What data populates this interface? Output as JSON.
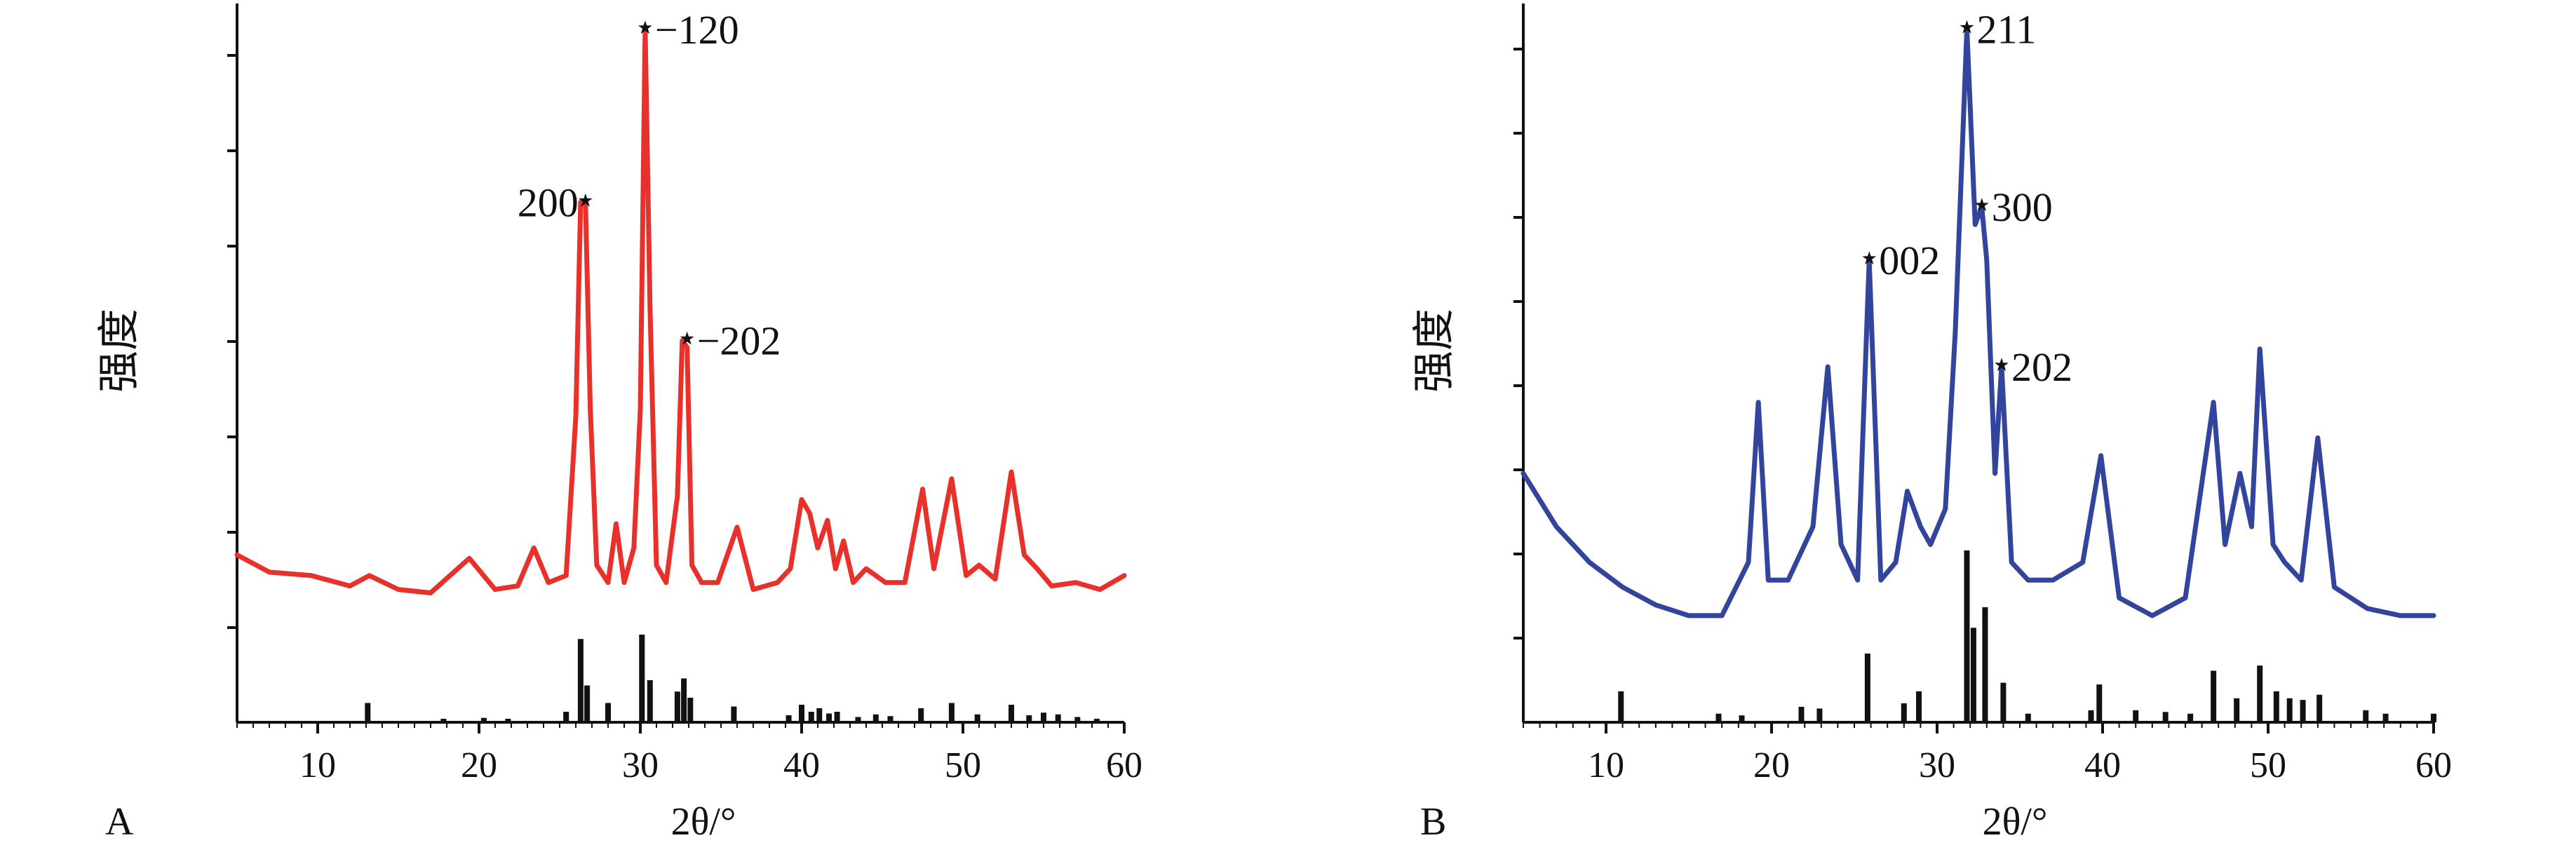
{
  "chart_data": [
    {
      "type": "line",
      "panel_label": "A",
      "xlabel": "2θ/°",
      "ylabel": "强度",
      "xlim": [
        5,
        60
      ],
      "xticks": [
        10,
        20,
        30,
        40,
        50,
        60
      ],
      "y_ticks_count": 7,
      "grid": false,
      "series": [
        {
          "color": "#e8312a",
          "x": [
            5,
            7,
            9.6,
            12,
            13.2,
            15,
            17,
            19.4,
            21,
            22.4,
            23.4,
            24.3,
            25.4,
            26.0,
            26.3,
            26.6,
            26.9,
            27.3,
            28.0,
            28.5,
            29.0,
            29.6,
            30.0,
            30.3,
            30.6,
            31.0,
            31.6,
            32.3,
            32.6,
            32.9,
            33.2,
            33.8,
            34.8,
            36.0,
            37,
            38.5,
            39.3,
            40.0,
            40.5,
            41.0,
            41.6,
            42.1,
            42.6,
            43.2,
            44,
            45.2,
            46.4,
            47.5,
            48.2,
            49.3,
            50.2,
            51,
            52,
            53.0,
            53.8,
            54.6,
            55.5,
            57,
            58.5,
            60
          ],
          "y": [
            18,
            13,
            12,
            9,
            12,
            8,
            7,
            17,
            8,
            9,
            20,
            10,
            12,
            58,
            120,
            120,
            60,
            15,
            10,
            27,
            10,
            20,
            60,
            170,
            90,
            15,
            10,
            35,
            80,
            78,
            15,
            10,
            10,
            26,
            8,
            10,
            14,
            34,
            30,
            20,
            28,
            14,
            22,
            10,
            14,
            10,
            10,
            37,
            14,
            40,
            12,
            15,
            11,
            42,
            18,
            14,
            9,
            10,
            8,
            12
          ]
        },
        {
          "color": "#111111",
          "x": [
            13.1,
            17.8,
            20.3,
            21.8,
            25.4,
            26.3,
            26.7,
            28.0,
            30.1,
            30.6,
            32.3,
            32.7,
            33.1,
            35.8,
            39.2,
            40.0,
            40.6,
            41.1,
            41.7,
            42.2,
            43.5,
            44.6,
            45.5,
            47.4,
            49.3,
            50.9,
            53.0,
            54.1,
            55.0,
            55.9,
            57.1,
            58.3
          ],
          "y": [
            22,
            4,
            5,
            4,
            12,
            95,
            42,
            22,
            100,
            48,
            35,
            50,
            28,
            18,
            8,
            20,
            12,
            16,
            10,
            12,
            6,
            9,
            7,
            16,
            22,
            9,
            20,
            8,
            11,
            9,
            6,
            4
          ]
        }
      ],
      "annotations": [
        {
          "text": "200",
          "x": 26.6,
          "y": 120
        },
        {
          "text": "−120",
          "x": 30.3,
          "y": 170
        },
        {
          "text": "−202",
          "x": 32.9,
          "y": 80
        }
      ]
    },
    {
      "type": "line",
      "panel_label": "B",
      "xlabel": "2θ/°",
      "ylabel": "强度",
      "xlim": [
        5,
        60
      ],
      "xticks": [
        10,
        20,
        30,
        40,
        50,
        60
      ],
      "y_ticks_count": 9,
      "grid": false,
      "series": [
        {
          "color": "#33449c",
          "x": [
            5,
            7,
            9,
            11,
            13,
            15,
            17,
            18.6,
            19.2,
            19.8,
            21,
            22.5,
            23.4,
            24.2,
            25.2,
            25.9,
            26.6,
            27.5,
            28.2,
            29.0,
            29.6,
            30.5,
            31.1,
            31.8,
            32.3,
            32.7,
            33.0,
            33.5,
            33.9,
            34.5,
            35.5,
            37,
            38.8,
            39.9,
            41,
            43,
            45,
            46.7,
            47.4,
            48.3,
            49.0,
            49.5,
            50.3,
            51,
            52,
            53.0,
            54,
            56,
            58,
            60
          ],
          "y": [
            70,
            55,
            45,
            38,
            33,
            30,
            30,
            45,
            90,
            40,
            40,
            55,
            100,
            50,
            40,
            130,
            40,
            45,
            65,
            55,
            50,
            60,
            110,
            195,
            140,
            145,
            130,
            70,
            100,
            45,
            40,
            40,
            45,
            75,
            35,
            30,
            35,
            90,
            50,
            70,
            55,
            105,
            50,
            45,
            40,
            80,
            38,
            32,
            30,
            30
          ]
        },
        {
          "color": "#111111",
          "x": [
            10.9,
            16.8,
            18.2,
            21.8,
            22.9,
            25.8,
            28.0,
            28.9,
            31.8,
            32.2,
            32.9,
            34.0,
            35.5,
            39.3,
            39.8,
            42.0,
            43.8,
            45.3,
            46.7,
            48.1,
            49.5,
            50.5,
            51.3,
            52.1,
            53.1,
            55.9,
            57.1,
            60.0
          ],
          "y": [
            18,
            5,
            4,
            9,
            8,
            40,
            11,
            18,
            100,
            55,
            67,
            23,
            5,
            7,
            22,
            7,
            6,
            5,
            30,
            14,
            33,
            18,
            14,
            13,
            16,
            7,
            5,
            5
          ]
        }
      ],
      "annotations": [
        {
          "text": "002",
          "x": 25.9,
          "y": 130
        },
        {
          "text": "211",
          "x": 31.8,
          "y": 195
        },
        {
          "text": "300",
          "x": 32.7,
          "y": 145
        },
        {
          "text": "202",
          "x": 33.9,
          "y": 100
        }
      ]
    }
  ]
}
